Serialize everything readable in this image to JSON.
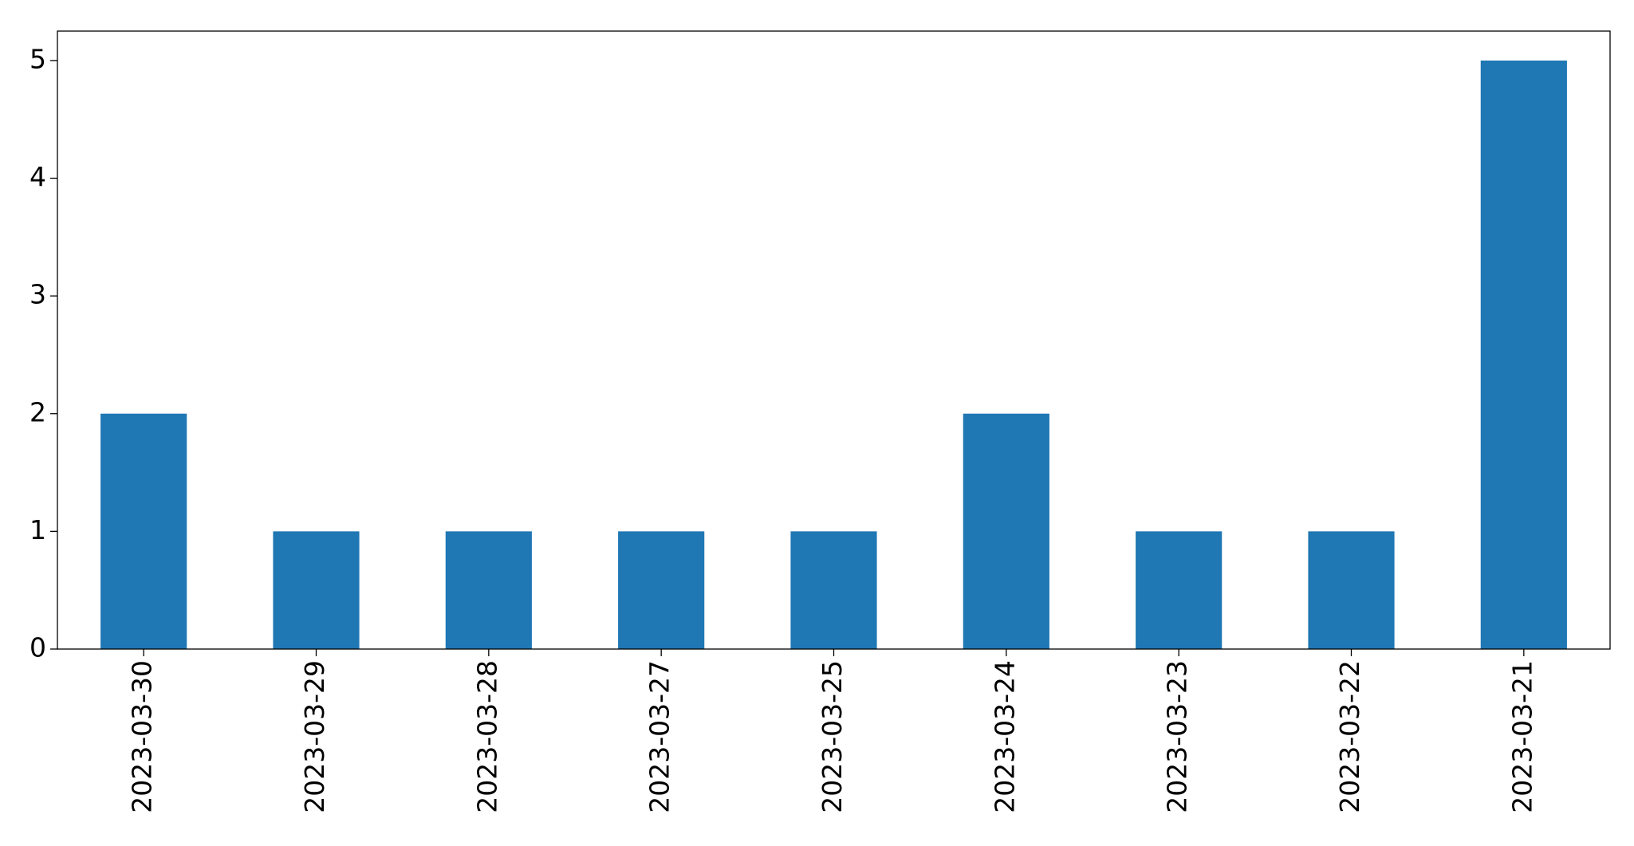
{
  "chart_data": {
    "type": "bar",
    "categories": [
      "2023-03-30",
      "2023-03-29",
      "2023-03-28",
      "2023-03-27",
      "2023-03-25",
      "2023-03-24",
      "2023-03-23",
      "2023-03-22",
      "2023-03-21"
    ],
    "values": [
      2,
      1,
      1,
      1,
      1,
      2,
      1,
      1,
      5
    ],
    "color": "#1f77b4",
    "ylim": [
      0,
      5.25
    ],
    "yticks": [
      0,
      1,
      2,
      3,
      4,
      5
    ],
    "grid": false
  }
}
